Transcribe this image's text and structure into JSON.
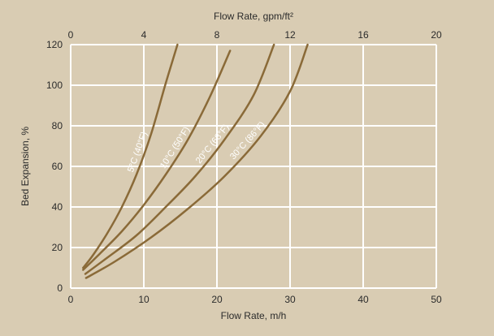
{
  "chart_data": {
    "type": "line",
    "title": "",
    "xlabel": "Flow Rate, m/h",
    "x2label": "Flow Rate, gpm/ft²",
    "ylabel": "Bed Expansion, %",
    "xlim": [
      0,
      50
    ],
    "x2lim": [
      0,
      20
    ],
    "ylim": [
      0,
      120
    ],
    "x_ticks": [
      "0",
      "10",
      "20",
      "30",
      "40",
      "50"
    ],
    "x2_ticks": [
      "0",
      "4",
      "8",
      "12",
      "16",
      "20"
    ],
    "y_ticks": [
      "0",
      "20",
      "40",
      "60",
      "80",
      "100",
      "120"
    ],
    "grid": true,
    "legend": "none",
    "series": [
      {
        "name": "5°C (40°F)",
        "x": [
          1.7,
          3,
          5,
          7,
          9,
          11,
          13,
          14.6
        ],
        "y": [
          10,
          16,
          27,
          40,
          56,
          76,
          101,
          120
        ]
      },
      {
        "name": "10°C (50°F)",
        "x": [
          1.7,
          4,
          7,
          10,
          13,
          16,
          19,
          21.8
        ],
        "y": [
          9,
          17,
          28,
          41,
          56,
          73,
          94,
          117
        ]
      },
      {
        "name": "20°C (68°F)",
        "x": [
          2,
          5,
          9,
          13,
          17,
          21,
          25,
          27.8
        ],
        "y": [
          7,
          15,
          26,
          40,
          55,
          73,
          95,
          120
        ]
      },
      {
        "name": "30°C (86°F)",
        "x": [
          2.1,
          6,
          11,
          16,
          21,
          26,
          30,
          32.4
        ],
        "y": [
          5,
          13,
          25,
          39,
          55,
          75,
          97,
          120
        ]
      }
    ],
    "colors": {
      "background": "#d9ccb3",
      "plot_area": "#d9ccb3",
      "grid": "#ffffff",
      "curve": "#8a6a38",
      "label_text": "#ffffff"
    }
  }
}
